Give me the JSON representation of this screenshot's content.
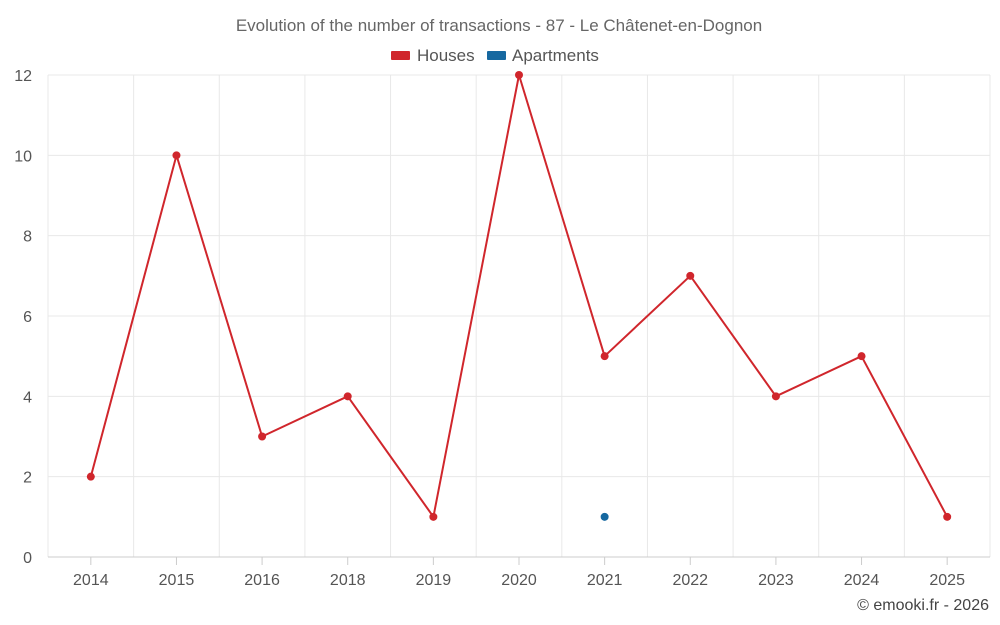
{
  "chart_data": {
    "type": "line",
    "title": "Evolution of the number of transactions - 87 - Le Châtenet-en-Dognon",
    "categories": [
      "2014",
      "2015",
      "2016",
      "2018",
      "2019",
      "2020",
      "2021",
      "2022",
      "2023",
      "2024",
      "2025"
    ],
    "series": [
      {
        "name": "Houses",
        "color": "#d0262c",
        "values": [
          2,
          10,
          3,
          4,
          1,
          12,
          5,
          7,
          4,
          5,
          1
        ]
      },
      {
        "name": "Apartments",
        "color": "#1668a0",
        "values": [
          null,
          null,
          null,
          null,
          null,
          null,
          1,
          null,
          null,
          null,
          null
        ]
      }
    ],
    "y_ticks": [
      "0",
      "2",
      "4",
      "6",
      "8",
      "10",
      "12"
    ],
    "ylim": [
      0,
      12
    ],
    "grid": true,
    "legend_position": "top-center",
    "xlabel": "",
    "ylabel": ""
  },
  "credit": "© emooki.fr - 2026"
}
